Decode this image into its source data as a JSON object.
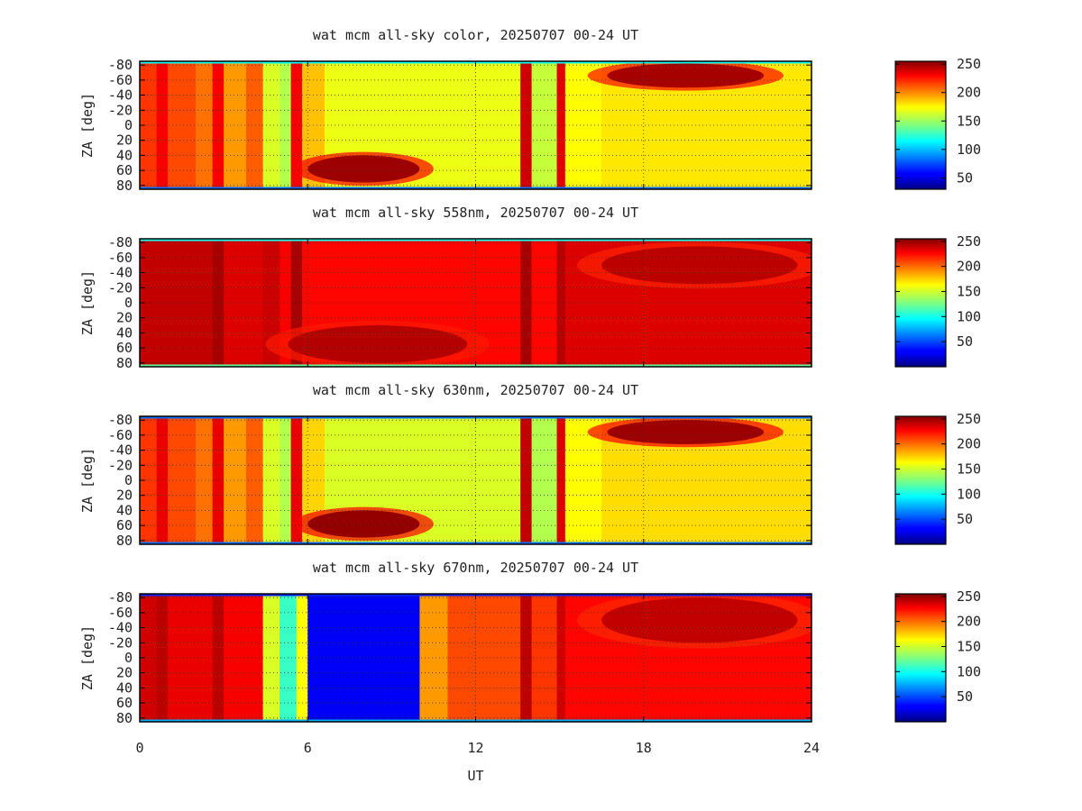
{
  "chart_data": [
    {
      "type": "heatmap",
      "title": "wat mcm all-sky color, 20250707 00-24 UT",
      "ylabel": "ZA [deg]",
      "xlabel": "",
      "xlim": [
        0,
        24
      ],
      "ylim": [
        -85,
        85
      ],
      "x_ticks": [
        "0",
        "6",
        "12",
        "18",
        "24"
      ],
      "y_ticks": [
        "-80",
        "-60",
        "-40",
        "-20",
        "0",
        "20",
        "40",
        "60",
        "80"
      ],
      "grid": true,
      "colorbar": {
        "range": [
          30,
          255
        ],
        "ticks": [
          "250",
          "200",
          "150",
          "100",
          "50"
        ]
      },
      "bands": [
        {
          "x": [
            0,
            0.6
          ],
          "value": 210
        },
        {
          "x": [
            0.6,
            1.0
          ],
          "value": 225
        },
        {
          "x": [
            1.0,
            2.0
          ],
          "value": 205
        },
        {
          "x": [
            2.0,
            2.6
          ],
          "value": 195
        },
        {
          "x": [
            2.6,
            3.0
          ],
          "value": 225
        },
        {
          "x": [
            3.0,
            3.8
          ],
          "value": 185
        },
        {
          "x": [
            3.8,
            4.4
          ],
          "value": 200
        },
        {
          "x": [
            4.4,
            5.0
          ],
          "value": 150
        },
        {
          "x": [
            5.0,
            5.4
          ],
          "value": 140
        },
        {
          "x": [
            5.4,
            5.8
          ],
          "value": 225
        },
        {
          "x": [
            5.8,
            6.6
          ],
          "value": 175
        },
        {
          "x": [
            6.6,
            13.6
          ],
          "value": 155
        },
        {
          "x": [
            13.6,
            14.0
          ],
          "value": 235
        },
        {
          "x": [
            14.0,
            14.9
          ],
          "value": 145
        },
        {
          "x": [
            14.9,
            15.2
          ],
          "value": 230
        },
        {
          "x": [
            15.2,
            16.5
          ],
          "value": 160
        },
        {
          "x": [
            16.5,
            24
          ],
          "value": 165
        }
      ],
      "blobs": [
        {
          "x": 8.0,
          "y": 58,
          "rx": 2.0,
          "ry": 18,
          "value": 248
        },
        {
          "x": 19.5,
          "y": -66,
          "rx": 2.8,
          "ry": 16,
          "value": 245
        }
      ],
      "edges": {
        "top_value": 95,
        "bottom_value": 60
      }
    },
    {
      "type": "heatmap",
      "title": "wat mcm all-sky 558nm, 20250707 00-24 UT",
      "ylabel": "ZA [deg]",
      "xlabel": "",
      "xlim": [
        0,
        24
      ],
      "ylim": [
        -85,
        85
      ],
      "x_ticks": [
        "0",
        "6",
        "12",
        "18",
        "24"
      ],
      "y_ticks": [
        "-80",
        "-60",
        "-40",
        "-20",
        "0",
        "20",
        "40",
        "60",
        "80"
      ],
      "grid": true,
      "colorbar": {
        "range": [
          0,
          255
        ],
        "ticks": [
          "250",
          "200",
          "150",
          "100",
          "50"
        ]
      },
      "bands": [
        {
          "x": [
            0,
            2.6
          ],
          "value": 238
        },
        {
          "x": [
            2.6,
            3.0
          ],
          "value": 245
        },
        {
          "x": [
            3.0,
            4.4
          ],
          "value": 232
        },
        {
          "x": [
            4.4,
            5.0
          ],
          "value": 236
        },
        {
          "x": [
            5.0,
            5.4
          ],
          "value": 225
        },
        {
          "x": [
            5.4,
            5.8
          ],
          "value": 245
        },
        {
          "x": [
            5.8,
            13.6
          ],
          "value": 222
        },
        {
          "x": [
            13.6,
            14.0
          ],
          "value": 245
        },
        {
          "x": [
            14.0,
            14.9
          ],
          "value": 222
        },
        {
          "x": [
            14.9,
            15.2
          ],
          "value": 242
        },
        {
          "x": [
            15.2,
            24
          ],
          "value": 232
        }
      ],
      "blobs": [
        {
          "x": 8.5,
          "y": 55,
          "rx": 3.2,
          "ry": 25,
          "value": 242
        },
        {
          "x": 20.0,
          "y": -50,
          "rx": 3.5,
          "ry": 25,
          "value": 240
        }
      ],
      "edges": {
        "top_value": 100,
        "bottom_value": 120
      }
    },
    {
      "type": "heatmap",
      "title": "wat mcm all-sky 630nm, 20250707 00-24 UT",
      "ylabel": "ZA [deg]",
      "xlabel": "",
      "xlim": [
        0,
        24
      ],
      "ylim": [
        -85,
        85
      ],
      "x_ticks": [
        "0",
        "6",
        "12",
        "18",
        "24"
      ],
      "y_ticks": [
        "-80",
        "-60",
        "-40",
        "-20",
        "0",
        "20",
        "40",
        "60",
        "80"
      ],
      "grid": true,
      "colorbar": {
        "range": [
          0,
          255
        ],
        "ticks": [
          "250",
          "200",
          "150",
          "100",
          "50"
        ]
      },
      "bands": [
        {
          "x": [
            0,
            0.6
          ],
          "value": 210
        },
        {
          "x": [
            0.6,
            1.0
          ],
          "value": 228
        },
        {
          "x": [
            1.0,
            2.0
          ],
          "value": 205
        },
        {
          "x": [
            2.0,
            2.6
          ],
          "value": 195
        },
        {
          "x": [
            2.6,
            3.0
          ],
          "value": 228
        },
        {
          "x": [
            3.0,
            3.8
          ],
          "value": 185
        },
        {
          "x": [
            3.8,
            4.4
          ],
          "value": 200
        },
        {
          "x": [
            4.4,
            5.0
          ],
          "value": 150
        },
        {
          "x": [
            5.0,
            5.4
          ],
          "value": 140
        },
        {
          "x": [
            5.4,
            5.8
          ],
          "value": 228
        },
        {
          "x": [
            5.8,
            6.6
          ],
          "value": 170
        },
        {
          "x": [
            6.6,
            13.6
          ],
          "value": 150
        },
        {
          "x": [
            13.6,
            14.0
          ],
          "value": 238
        },
        {
          "x": [
            14.0,
            14.9
          ],
          "value": 140
        },
        {
          "x": [
            14.9,
            15.2
          ],
          "value": 232
        },
        {
          "x": [
            15.2,
            16.5
          ],
          "value": 160
        },
        {
          "x": [
            16.5,
            24
          ],
          "value": 168
        }
      ],
      "blobs": [
        {
          "x": 8.0,
          "y": 58,
          "rx": 2.0,
          "ry": 18,
          "value": 250
        },
        {
          "x": 19.5,
          "y": -64,
          "rx": 2.8,
          "ry": 16,
          "value": 248
        }
      ],
      "edges": {
        "top_value": 60,
        "bottom_value": 60
      }
    },
    {
      "type": "heatmap",
      "title": "wat mcm all-sky 670nm, 20250707 00-24 UT",
      "ylabel": "ZA [deg]",
      "xlabel": "UT",
      "xlim": [
        0,
        24
      ],
      "ylim": [
        -85,
        85
      ],
      "x_ticks": [
        "0",
        "6",
        "12",
        "18",
        "24"
      ],
      "y_ticks": [
        "-80",
        "-60",
        "-40",
        "-20",
        "0",
        "20",
        "40",
        "60",
        "80"
      ],
      "grid": true,
      "colorbar": {
        "range": [
          0,
          255
        ],
        "ticks": [
          "250",
          "200",
          "150",
          "100",
          "50"
        ]
      },
      "bands": [
        {
          "x": [
            0,
            0.6
          ],
          "value": 235
        },
        {
          "x": [
            0.6,
            1.0
          ],
          "value": 240
        },
        {
          "x": [
            1.0,
            2.6
          ],
          "value": 228
        },
        {
          "x": [
            2.6,
            3.0
          ],
          "value": 240
        },
        {
          "x": [
            3.0,
            4.4
          ],
          "value": 225
        },
        {
          "x": [
            4.4,
            5.0
          ],
          "value": 150
        },
        {
          "x": [
            5.0,
            5.6
          ],
          "value": 110
        },
        {
          "x": [
            5.6,
            6.0
          ],
          "value": 160
        },
        {
          "x": [
            6.0,
            10.0
          ],
          "value": 30
        },
        {
          "x": [
            10.0,
            11.0
          ],
          "value": 185
        },
        {
          "x": [
            11.0,
            13.6
          ],
          "value": 205
        },
        {
          "x": [
            13.6,
            14.0
          ],
          "value": 240
        },
        {
          "x": [
            14.0,
            14.9
          ],
          "value": 210
        },
        {
          "x": [
            14.9,
            15.2
          ],
          "value": 235
        },
        {
          "x": [
            15.2,
            24
          ],
          "value": 222
        }
      ],
      "blobs": [
        {
          "x": 20.0,
          "y": -50,
          "rx": 3.5,
          "ry": 30,
          "value": 238
        }
      ],
      "edges": {
        "top_value": 40,
        "bottom_value": 75
      }
    }
  ]
}
